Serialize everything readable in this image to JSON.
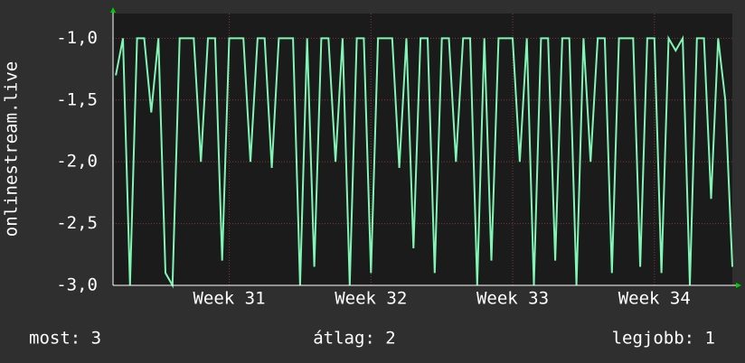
{
  "chart_data": {
    "type": "line",
    "ylabel": "onlinestream.live",
    "footer": [
      "most: 3",
      "átlag: 2",
      "legjobb: 1"
    ],
    "x": [
      30.2,
      30.25,
      30.3,
      30.35,
      30.4,
      30.45,
      30.5,
      30.55,
      30.6,
      30.65,
      30.7,
      30.75,
      30.8,
      30.85,
      30.9,
      30.95,
      31.0,
      31.05,
      31.1,
      31.15,
      31.2,
      31.25,
      31.3,
      31.35,
      31.4,
      31.45,
      31.5,
      31.55,
      31.6,
      31.65,
      31.7,
      31.75,
      31.8,
      31.85,
      31.9,
      31.95,
      32.0,
      32.05,
      32.1,
      32.15,
      32.2,
      32.25,
      32.3,
      32.35,
      32.4,
      32.45,
      32.5,
      32.55,
      32.6,
      32.65,
      32.7,
      32.75,
      32.8,
      32.85,
      32.9,
      32.95,
      33.0,
      33.05,
      33.1,
      33.15,
      33.2,
      33.25,
      33.3,
      33.35,
      33.4,
      33.45,
      33.5,
      33.55,
      33.6,
      33.65,
      33.7,
      33.75,
      33.8,
      33.85,
      33.9,
      33.95,
      34.0,
      34.05,
      34.1,
      34.15,
      34.2,
      34.25,
      34.3,
      34.35,
      34.4,
      34.45,
      34.5,
      34.55
    ],
    "series": [
      {
        "color": "#80f5b4",
        "values": [
          -1.3,
          -1.0,
          -3.0,
          -1.0,
          -1.0,
          -1.6,
          -1.0,
          -2.9,
          -3.0,
          -1.0,
          -1.0,
          -1.0,
          -2.0,
          -1.0,
          -1.0,
          -2.8,
          -1.0,
          -1.0,
          -1.0,
          -2.0,
          -1.0,
          -1.0,
          -2.05,
          -1.0,
          -1.0,
          -1.0,
          -3.0,
          -1.0,
          -2.85,
          -1.0,
          -1.0,
          -2.0,
          -1.0,
          -3.0,
          -1.0,
          -1.0,
          -2.9,
          -1.0,
          -1.0,
          -1.0,
          -2.05,
          -1.0,
          -2.7,
          -1.0,
          -1.0,
          -2.9,
          -1.0,
          -1.0,
          -2.0,
          -1.0,
          -1.0,
          -3.0,
          -1.0,
          -2.8,
          -1.0,
          -1.0,
          -1.0,
          -2.0,
          -1.0,
          -3.0,
          -1.0,
          -1.0,
          -2.8,
          -1.0,
          -1.0,
          -3.0,
          -1.0,
          -2.0,
          -1.0,
          -1.0,
          -2.9,
          -1.0,
          -1.0,
          -1.0,
          -2.85,
          -1.0,
          -1.0,
          -2.9,
          -1.0,
          -1.1,
          -1.0,
          -3.0,
          -1.0,
          -1.0,
          -2.3,
          -1.0,
          -1.5,
          -2.85
        ]
      }
    ],
    "xlim": [
      30.18,
      34.55
    ],
    "xticks": [
      {
        "value": 31,
        "label": "Week 31"
      },
      {
        "value": 32,
        "label": "Week 32"
      },
      {
        "value": 33,
        "label": "Week 33"
      },
      {
        "value": 34,
        "label": "Week 34"
      }
    ],
    "ylim": [
      -3.0,
      -0.8
    ],
    "yticks": [
      {
        "value": -3.0,
        "label": "-3,0"
      },
      {
        "value": -2.5,
        "label": "-2,5"
      },
      {
        "value": -2.0,
        "label": "-2,0"
      },
      {
        "value": -1.5,
        "label": "-1,5"
      },
      {
        "value": -1.0,
        "label": "-1,0"
      }
    ],
    "grid": true
  }
}
